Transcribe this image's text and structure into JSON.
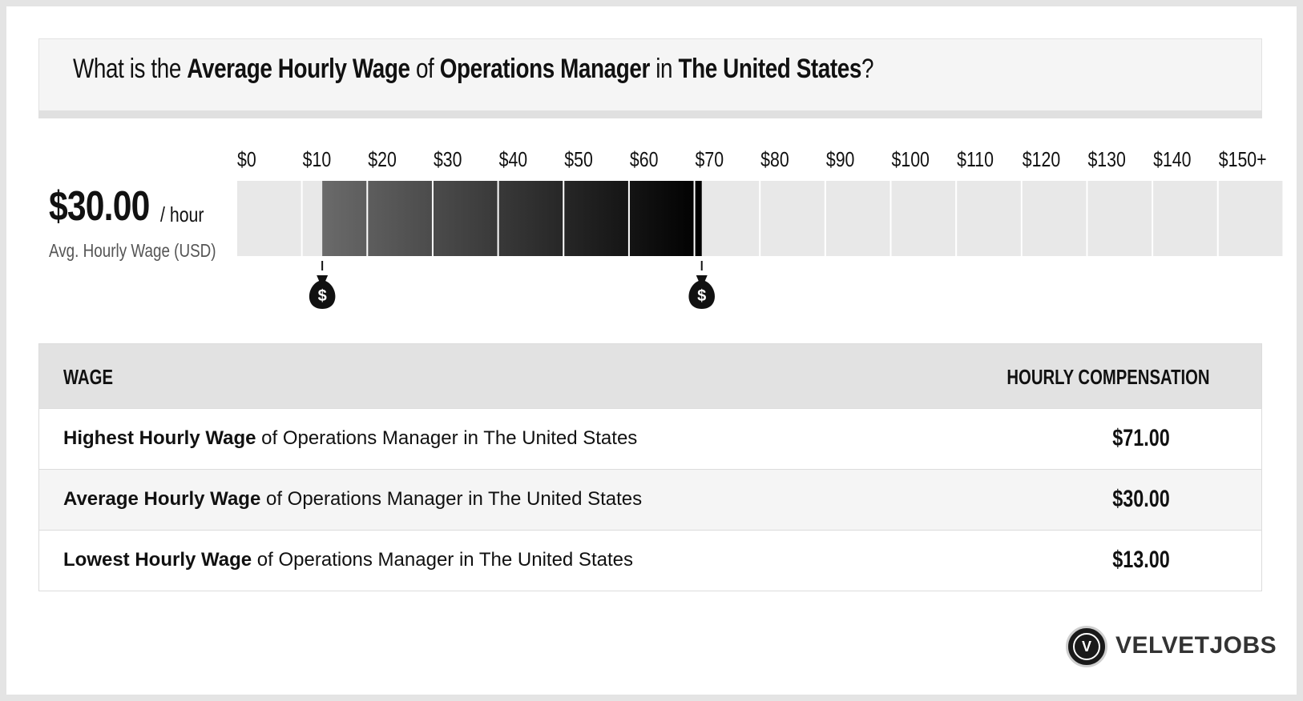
{
  "title": {
    "t1": "What is the ",
    "b1": "Average Hourly Wage",
    "t2": " of ",
    "b2": "Operations Manager",
    "t3": " in ",
    "b3": "The United States",
    "t4": "?"
  },
  "summary": {
    "value": "$30.00",
    "unit": "/ hour",
    "caption": "Avg. Hourly Wage (USD)"
  },
  "chart_data": {
    "type": "bar",
    "tick_labels": [
      "$0",
      "$10",
      "$20",
      "$30",
      "$40",
      "$50",
      "$60",
      "$70",
      "$80",
      "$90",
      "$100",
      "$110",
      "$120",
      "$130",
      "$140",
      "$150+"
    ],
    "axis_range": [
      0,
      160
    ],
    "range_low": 13,
    "range_high": 71,
    "marker_icon": "money-bag-icon",
    "marker_symbol": "$",
    "colors": {
      "track": "#e8e8e8",
      "gradient_start": "#6a6a6a",
      "gradient_end": "#000000"
    }
  },
  "table": {
    "header_wage": "WAGE",
    "header_comp": "HOURLY COMPENSATION",
    "rows": [
      {
        "bold": "Highest Hourly Wage",
        "rest": " of Operations Manager in The United States",
        "value": "$71.00"
      },
      {
        "bold": "Average Hourly Wage",
        "rest": " of Operations Manager in The United States",
        "value": "$30.00"
      },
      {
        "bold": "Lowest Hourly Wage",
        "rest": " of Operations Manager in The United States",
        "value": "$13.00"
      }
    ]
  },
  "brand": {
    "logo_letter": "V",
    "name": "VELVETJOBS"
  }
}
